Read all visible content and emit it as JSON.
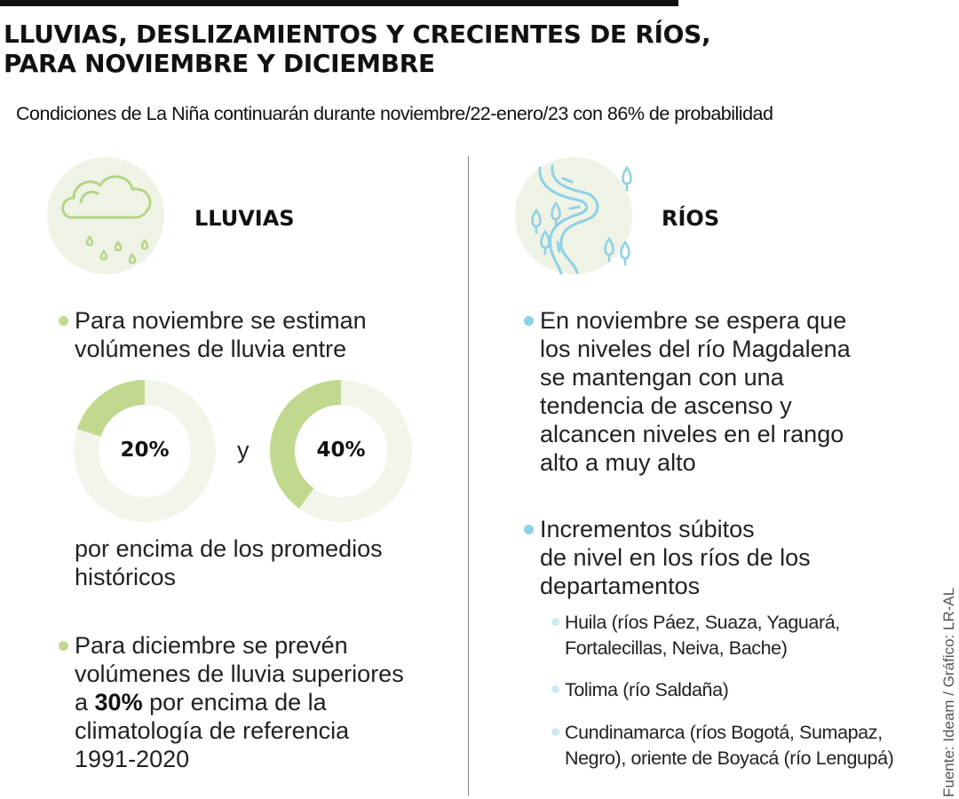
{
  "header": {
    "title_line1": "LLUVIAS, DESLIZAMIENTOS Y CRECIENTES DE RÍOS,",
    "title_line2": "PARA NOVIEMBRE Y DICIEMBRE",
    "subtitle": "Condiciones de La Niña continuarán durante noviembre/22-enero/23 con 86% de probabilidad"
  },
  "lluvias": {
    "label": "LLUVIAS",
    "icon": "rain-cloud-icon",
    "bullet1_line1": "Para noviembre se estiman",
    "bullet1_line2": "volúmenes de lluvia entre",
    "donut1": {
      "value": 20,
      "label": "20%"
    },
    "connector": "y",
    "donut2": {
      "value": 40,
      "label": "40%"
    },
    "after_line1": "por encima de los promedios",
    "after_line2": "históricos",
    "bullet2_line1": "Para diciembre se prevén",
    "bullet2_line2": "volúmenes de lluvia superiores",
    "bullet2_prefix": "a ",
    "bullet2_bold": "30%",
    "bullet2_suffix": " por encima de la",
    "bullet2_line4": "climatología de referencia",
    "bullet2_line5": "1991-2020"
  },
  "rios": {
    "label": "RÍOS",
    "icon": "river-icon",
    "bullet1_lines": [
      "En noviembre se espera que",
      "los niveles del río Magdalena",
      "se mantengan con una",
      "tendencia de ascenso y",
      "alcancen niveles en el rango",
      "alto a muy alto"
    ],
    "bullet2_lines": [
      "Incrementos súbitos",
      "de nivel en los ríos de los",
      "departamentos"
    ],
    "sub_items": [
      {
        "line1": "Huila (ríos Páez, Suaza, Yaguará,",
        "line2": "Fortalecillas, Neiva, Bache)"
      },
      {
        "line1": "Tolima (río Saldaña)",
        "line2": ""
      },
      {
        "line1": "Cundinamarca (ríos Bogotá, Sumapaz,",
        "line2": "Negro), oriente de Boyacá (río Lengupá)"
      }
    ]
  },
  "colors": {
    "green_accent": "#c1d98f",
    "donut_track": "#f1f5ea",
    "blue_accent": "#8fd1e6",
    "icon_bg": "#eef3e6"
  },
  "source": "Fuente: Ideam / Gráfico: LR-AL"
}
